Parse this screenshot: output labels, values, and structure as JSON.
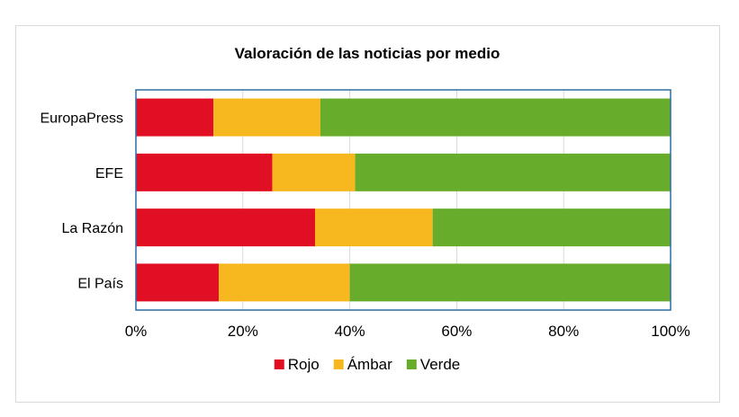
{
  "chart_data": {
    "type": "bar",
    "orientation": "horizontal",
    "stacked": "percent",
    "title": "Valoración de las noticias por medio",
    "categories": [
      "EuropaPress",
      "EFE",
      "La Razón",
      "El País"
    ],
    "series": [
      {
        "name": "Rojo",
        "color": "#e10f23",
        "values": [
          14.5,
          25.5,
          33.5,
          15.5
        ]
      },
      {
        "name": "Ámbar",
        "color": "#f7b81f",
        "values": [
          20,
          15.5,
          22,
          24.5
        ]
      },
      {
        "name": "Verde",
        "color": "#67ad2b",
        "values": [
          65.5,
          59,
          44.5,
          60
        ]
      }
    ],
    "xlim": [
      0,
      100
    ],
    "xticks": [
      "0%",
      "20%",
      "40%",
      "60%",
      "80%",
      "100%"
    ],
    "grid": "vertical",
    "legend": "bottom",
    "plot_border_color": "#2e6da4"
  }
}
